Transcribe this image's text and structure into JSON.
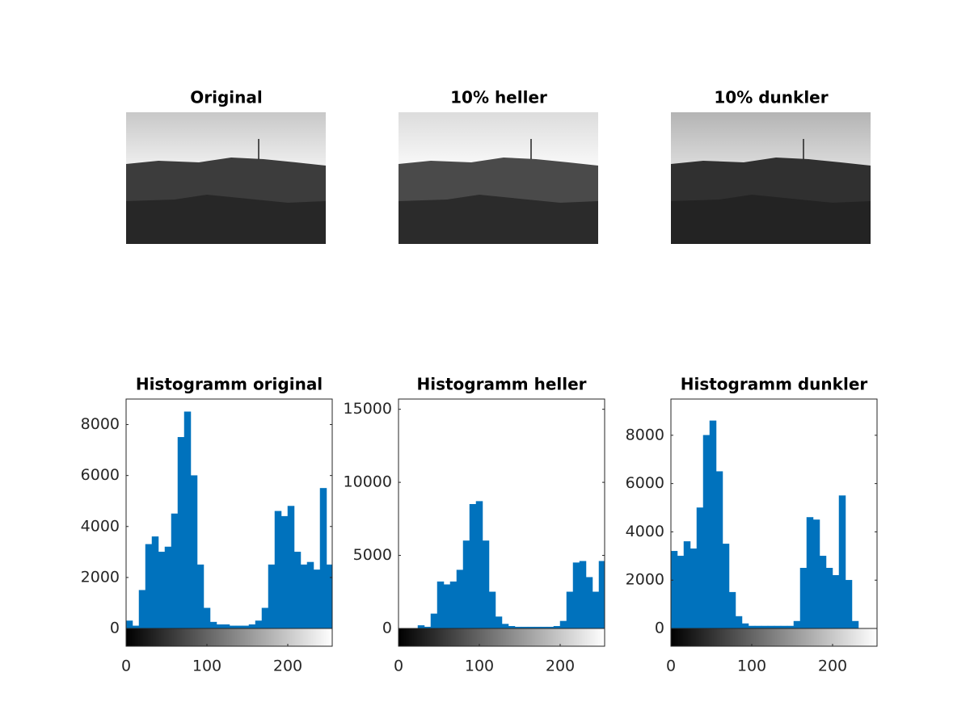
{
  "images": [
    {
      "title": "Original"
    },
    {
      "title": "10% heller"
    },
    {
      "title": "10% dunkler"
    }
  ],
  "chart_data": [
    {
      "type": "histogram",
      "title": "Histogramm original",
      "color": "#0072bd",
      "bins": [
        0,
        8,
        16,
        24,
        32,
        40,
        48,
        56,
        64,
        72,
        80,
        88,
        96,
        104,
        112,
        120,
        128,
        136,
        144,
        152,
        160,
        168,
        176,
        184,
        192,
        200,
        208,
        216,
        224,
        232,
        240,
        248,
        256
      ],
      "values": [
        300,
        100,
        1500,
        3300,
        3600,
        3000,
        3200,
        4500,
        7500,
        8500,
        6000,
        2500,
        800,
        250,
        150,
        150,
        100,
        100,
        100,
        150,
        300,
        800,
        2500,
        4600,
        4400,
        4800,
        3000,
        2500,
        2600,
        2300,
        5500,
        2500
      ],
      "xlim": [
        0,
        255
      ],
      "xticks": [
        0,
        100,
        200
      ],
      "ylim": [
        0,
        9000
      ],
      "yticks": [
        0,
        2000,
        4000,
        6000,
        8000
      ]
    },
    {
      "type": "histogram",
      "title": "Histogramm heller",
      "color": "#0072bd",
      "bins": [
        0,
        8,
        16,
        24,
        32,
        40,
        48,
        56,
        64,
        72,
        80,
        88,
        96,
        104,
        112,
        120,
        128,
        136,
        144,
        152,
        160,
        168,
        176,
        184,
        192,
        200,
        208,
        216,
        224,
        232,
        240,
        248,
        256
      ],
      "values": [
        0,
        0,
        0,
        200,
        100,
        1000,
        3200,
        3000,
        3200,
        4000,
        6000,
        8500,
        8700,
        6000,
        2500,
        800,
        300,
        150,
        100,
        100,
        100,
        100,
        100,
        100,
        150,
        500,
        2500,
        4500,
        4600,
        3500,
        2500,
        4600
      ],
      "xlim": [
        0,
        255
      ],
      "xticks": [
        0,
        100,
        200
      ],
      "ylim": [
        0,
        15700
      ],
      "yticks": [
        0,
        5000,
        10000,
        15000
      ]
    },
    {
      "type": "histogram",
      "title": "Histogramm dunkler",
      "color": "#0072bd",
      "bins": [
        0,
        8,
        16,
        24,
        32,
        40,
        48,
        56,
        64,
        72,
        80,
        88,
        96,
        104,
        112,
        120,
        128,
        136,
        144,
        152,
        160,
        168,
        176,
        184,
        192,
        200,
        208,
        216,
        224,
        232,
        240,
        248,
        256
      ],
      "values": [
        3200,
        3000,
        3600,
        3300,
        5000,
        8000,
        8600,
        6500,
        3500,
        1500,
        500,
        200,
        100,
        100,
        100,
        100,
        100,
        100,
        100,
        300,
        2500,
        4600,
        4500,
        3000,
        2500,
        2200,
        5500,
        2000,
        300,
        0,
        0,
        0
      ],
      "xlim": [
        0,
        255
      ],
      "xticks": [
        0,
        100,
        200
      ],
      "ylim": [
        0,
        9500
      ],
      "yticks": [
        0,
        2000,
        4000,
        6000,
        8000
      ]
    }
  ]
}
